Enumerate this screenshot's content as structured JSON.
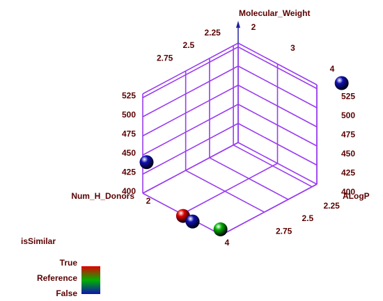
{
  "chart_data": {
    "type": "scatter3d",
    "x_label": "ALogP",
    "y_label": "Num_H_Donors",
    "z_label": "Molecular_Weight",
    "xlim": [
      2.2,
      3.2
    ],
    "xticks": [
      2.25,
      2.5,
      2.75
    ],
    "ylim": [
      2,
      4
    ],
    "yticks": [
      2,
      3,
      4
    ],
    "zlim": [
      400,
      530
    ],
    "zticks": [
      400,
      425,
      450,
      475,
      500,
      525
    ],
    "legend_title": "isSimilar",
    "series": [
      {
        "name": "True",
        "color": "#e00000",
        "x": [
          3.19
        ],
        "y": [
          3
        ],
        "z": [
          397
        ]
      },
      {
        "name": "Reference",
        "color": "#00b000",
        "x": [
          3.21
        ],
        "y": [
          4
        ],
        "z": [
          408
        ]
      },
      {
        "name": "False",
        "color": "#1010b0",
        "x": [
          1.94,
          3.16,
          3.09
        ],
        "y": [
          4,
          2,
          3
        ],
        "z": [
          515,
          438,
          383
        ]
      }
    ]
  }
}
